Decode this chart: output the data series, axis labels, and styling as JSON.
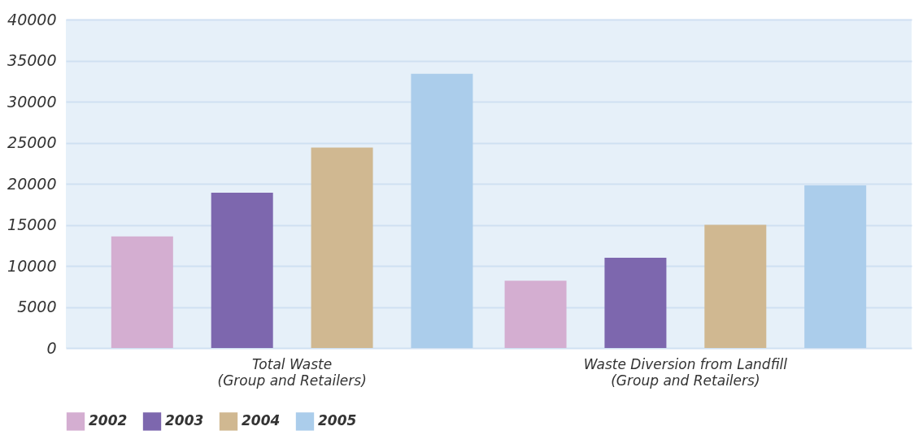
{
  "chart_data": {
    "type": "bar",
    "categories": [
      "Total Waste\n(Group and Retailers)",
      "Waste Diversion from Landfill\n(Group and Retailers)"
    ],
    "series": [
      {
        "name": "2002",
        "color": "#d4aed1",
        "values": [
          13600,
          8200
        ]
      },
      {
        "name": "2003",
        "color": "#7d67ae",
        "values": [
          18900,
          11000
        ]
      },
      {
        "name": "2004",
        "color": "#d0b891",
        "values": [
          24400,
          15000
        ]
      },
      {
        "name": "2005",
        "color": "#abcdeb",
        "values": [
          33400,
          19800
        ]
      }
    ],
    "ylim": [
      0,
      40000
    ],
    "yticks": [
      0,
      5000,
      10000,
      15000,
      20000,
      25000,
      30000,
      35000,
      40000
    ],
    "grid": "y",
    "legend": "bottom"
  }
}
